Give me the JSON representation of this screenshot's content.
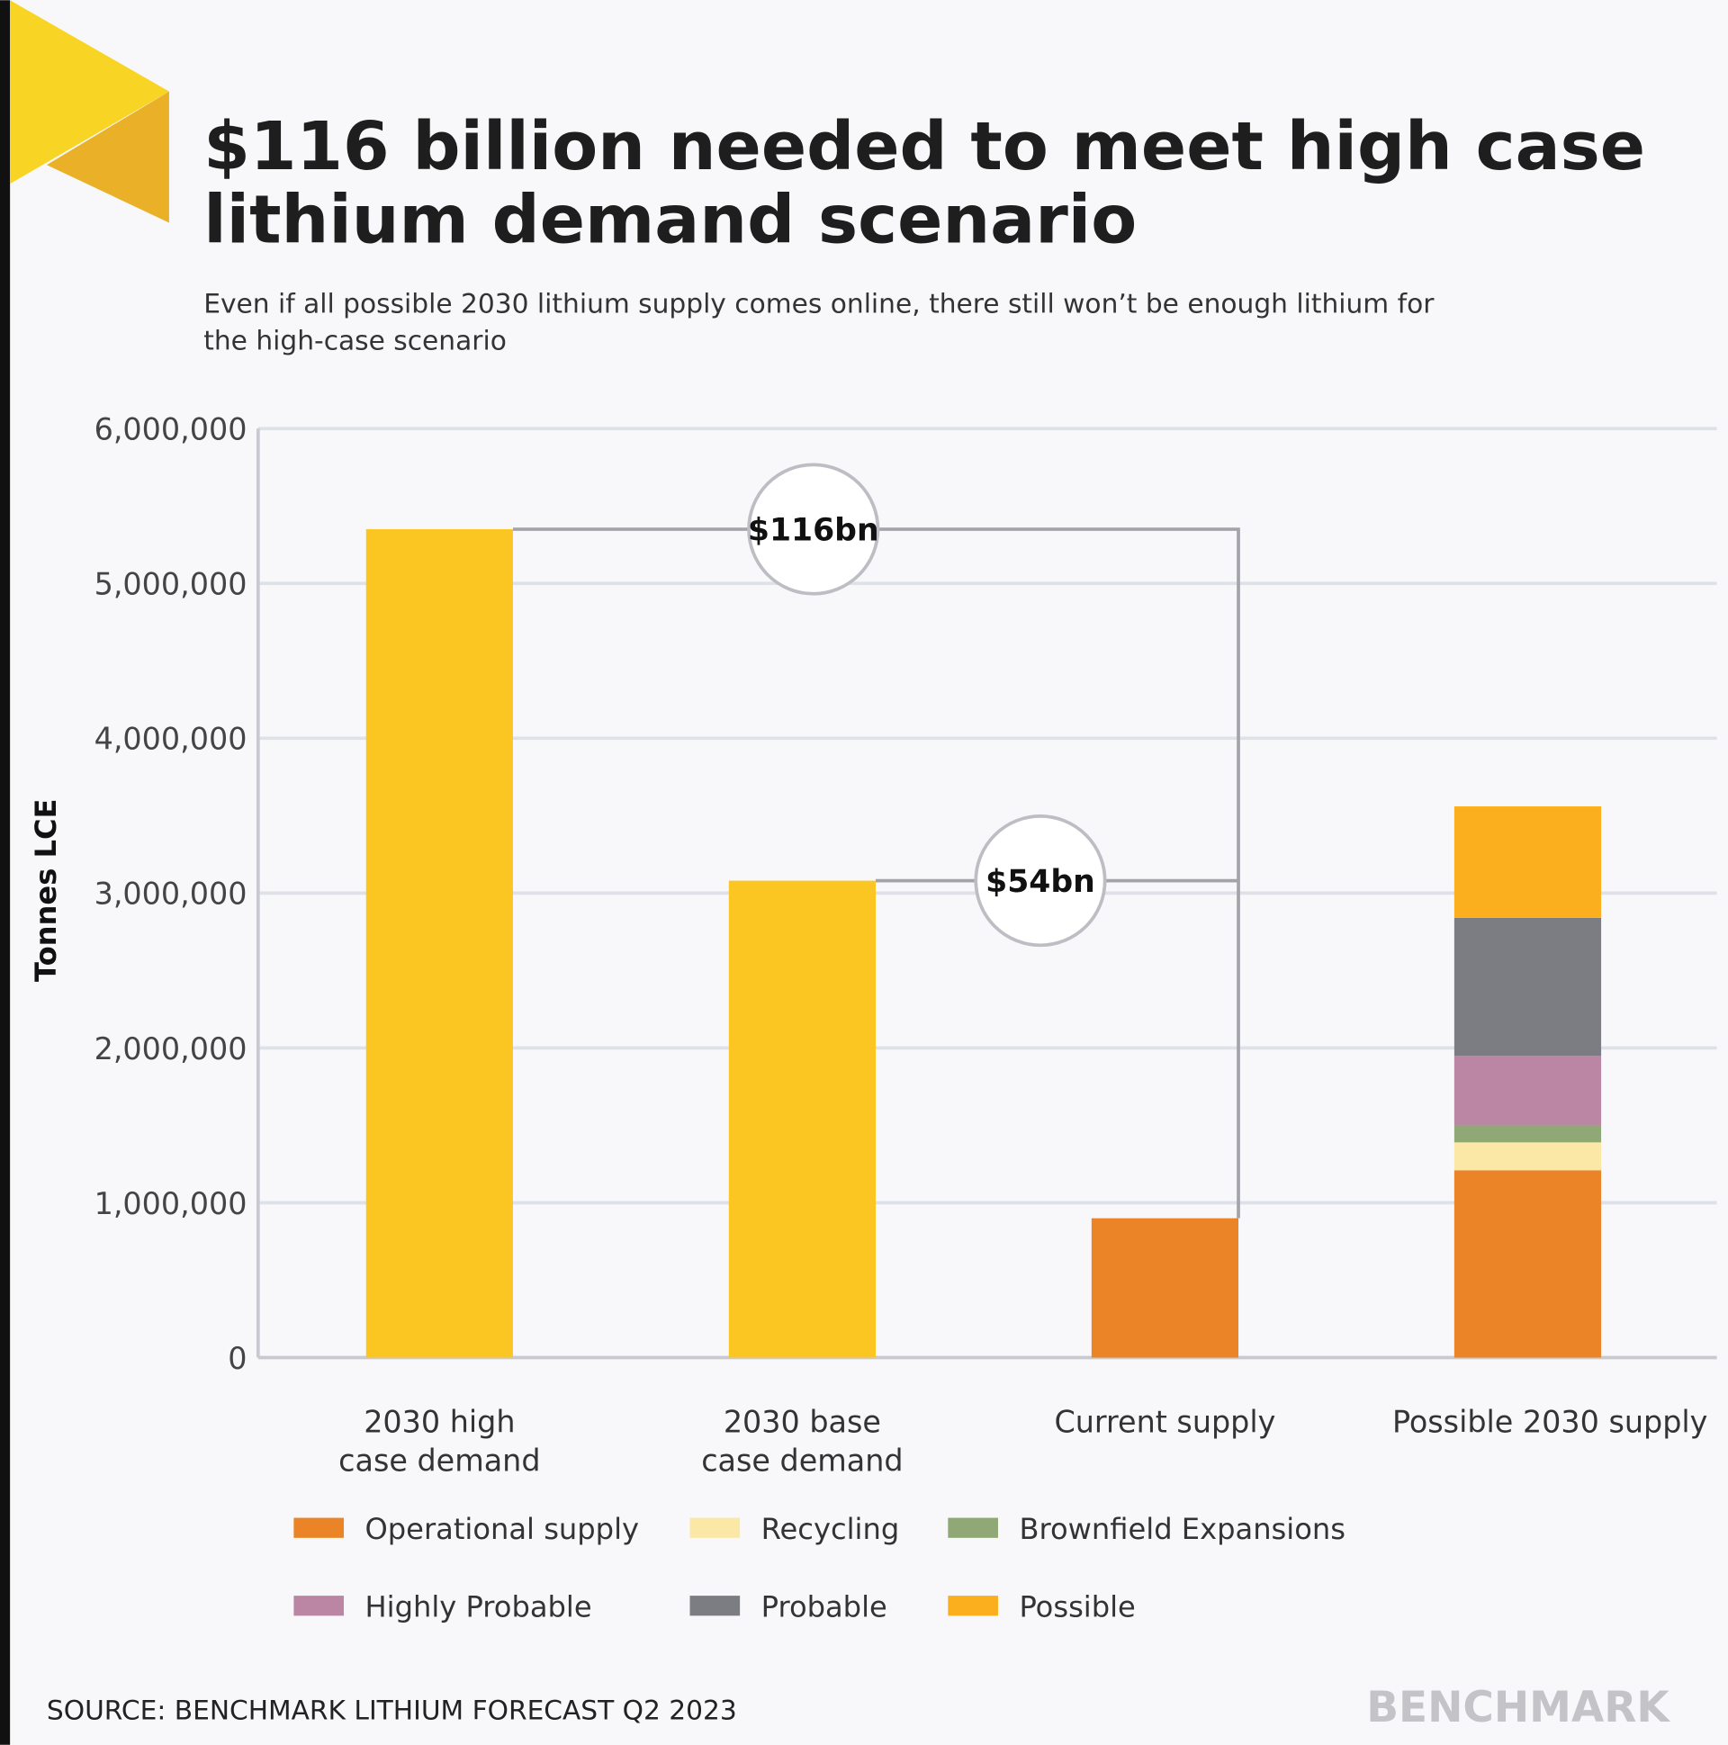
{
  "chart_data": {
    "type": "bar",
    "title": [
      "$116 billion needed to meet high case",
      "lithium demand scenario"
    ],
    "subtitle": [
      "Even if all possible 2030 lithium supply comes online, there still won’t be enough lithium for",
      "the high-case scenario"
    ],
    "y_label": "Tonnes LCE",
    "categories": [
      [
        "2030 high",
        "case demand"
      ],
      [
        "2030 base",
        "case demand"
      ],
      [
        "Current supply"
      ],
      [
        "Possible 2030 supply"
      ]
    ],
    "demand_color": "#fcc622",
    "demand_values": [
      5350000,
      3080000,
      null,
      null
    ],
    "series": [
      {
        "name": "Operational supply",
        "color": "#ea8427",
        "values": [
          null,
          null,
          900000,
          1210000
        ]
      },
      {
        "name": "Recycling",
        "color": "#fbe8a6",
        "values": [
          null,
          null,
          null,
          180000
        ]
      },
      {
        "name": "Brownfield Expansions",
        "color": "#8fa876",
        "values": [
          null,
          null,
          null,
          110000
        ]
      },
      {
        "name": "Highly Probable",
        "color": "#bb86a3",
        "values": [
          null,
          null,
          null,
          450000
        ]
      },
      {
        "name": "Probable",
        "color": "#7b7d82",
        "values": [
          null,
          null,
          null,
          890000
        ]
      },
      {
        "name": "Possible",
        "color": "#fcaf1e",
        "values": [
          null,
          null,
          null,
          720000
        ]
      }
    ],
    "annotations": [
      "$116bn",
      "$54bn"
    ],
    "ylim": [
      0,
      6000000
    ],
    "yticks": [
      0,
      {
        "value": 1000000,
        "label": "1,000,000"
      },
      {
        "value": 2000000,
        "label": "2,000,000"
      },
      {
        "value": 3000000,
        "label": "3,000,000"
      },
      {
        "value": 4000000,
        "label": "4,000,000"
      },
      {
        "value": 5000000,
        "label": "5,000,000"
      },
      {
        "value": 6000000,
        "label": "6,000,000"
      }
    ],
    "grid": true,
    "source": "SOURCE: BENCHMARK LITHIUM FORECAST Q2 2023",
    "logo": "BENCHMARK"
  }
}
